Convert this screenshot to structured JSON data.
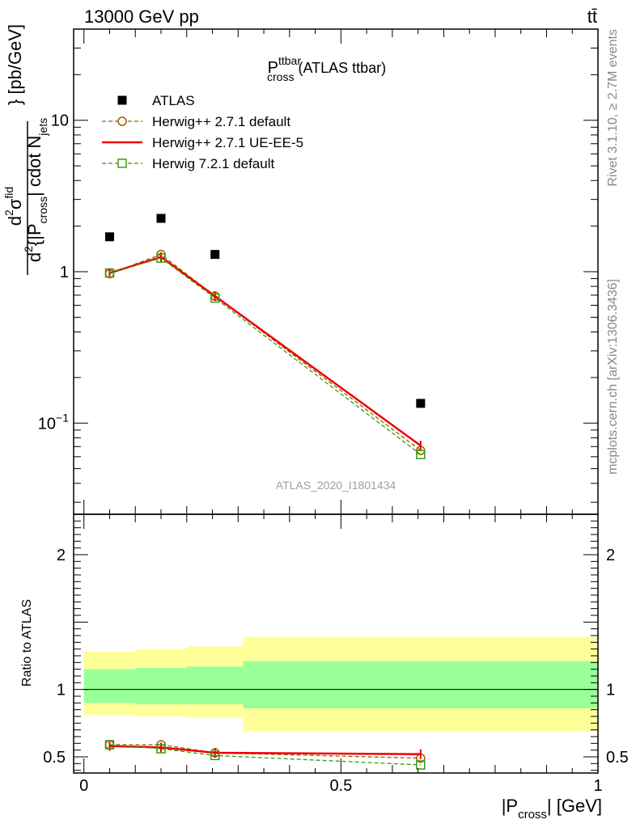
{
  "header": {
    "energy_label": "13000 GeV pp",
    "process_label": "tt̄"
  },
  "side_labels": {
    "rivet": "Rivet 3.1.10, ≥ 2.7M events",
    "mcplots": "mcplots.cern.ch [arXiv:1306.3436]"
  },
  "watermark": "ATLAS_2020_I1801434",
  "chart_data": [
    {
      "type": "scatter",
      "title": {
        "main": "P",
        "sup": "ttbar",
        "sub": "cross",
        "suffix": " (ATLAS ttbar)"
      },
      "ylabel": {
        "num_d": "d",
        "num_sup": "2",
        "num_sigma": "σ",
        "num_sigma_sup": "fid",
        "den_d": "d",
        "den_sup": "2",
        "den_body": "{|P",
        "den_sub": "cross",
        "den_body2": "| cdot N",
        "den_sub2": "jets",
        "units": "} [pb/GeV]"
      },
      "yscale": "log",
      "ylim": [
        0.025,
        40
      ],
      "xlim": [
        -0.02,
        1.0
      ],
      "yticks": [
        {
          "value": 0.1,
          "base": "10",
          "exp": "−1"
        },
        {
          "value": 1,
          "label": "1"
        },
        {
          "value": 10,
          "label": "10"
        }
      ],
      "series": [
        {
          "name": "ATLAS",
          "color": "#000000",
          "marker": "filled-square",
          "x": [
            0.05,
            0.15,
            0.255,
            0.655
          ],
          "y": [
            1.7,
            2.25,
            1.3,
            0.135
          ]
        },
        {
          "name": "Herwig++ 2.7.1 default",
          "color": "#a05a00",
          "marker": "open-circle",
          "dash": "dashed",
          "x": [
            0.05,
            0.15,
            0.255,
            0.655
          ],
          "y": [
            0.97,
            1.3,
            0.69,
            0.066
          ]
        },
        {
          "name": "Herwig++ 2.7.1 UE-EE-5",
          "color": "#ee0000",
          "marker": "none",
          "dash": "solid",
          "x": [
            0.05,
            0.15,
            0.255,
            0.655
          ],
          "y": [
            0.98,
            1.25,
            0.69,
            0.071
          ]
        },
        {
          "name": "Herwig 7.2.1 default",
          "color": "#3a9a10",
          "marker": "open-square",
          "dash": "dashed",
          "x": [
            0.05,
            0.15,
            0.255,
            0.655
          ],
          "y": [
            0.98,
            1.23,
            0.67,
            0.062
          ]
        }
      ]
    },
    {
      "type": "scatter",
      "ylabel": "Ratio to ATLAS",
      "xlabel": {
        "pre": "|P",
        "sub": "cross",
        "post": "| [GeV]"
      },
      "xlim": [
        -0.02,
        1.0
      ],
      "ylim": [
        0.38,
        2.3
      ],
      "xticks": [
        {
          "value": 0,
          "label": "0"
        },
        {
          "value": 0.5,
          "label": "0.5"
        },
        {
          "value": 1,
          "label": "1"
        }
      ],
      "yticks": [
        {
          "value": 0.5,
          "label": "0.5"
        },
        {
          "value": 1,
          "label": "1"
        },
        {
          "value": 2,
          "label": "2"
        }
      ],
      "reference_line": 1,
      "bands": [
        {
          "x0": 0.0,
          "x1": 0.1,
          "inner": [
            0.9,
            1.15
          ],
          "outer": [
            0.81,
            1.28
          ]
        },
        {
          "x0": 0.1,
          "x1": 0.2,
          "inner": [
            0.89,
            1.16
          ],
          "outer": [
            0.8,
            1.3
          ]
        },
        {
          "x0": 0.2,
          "x1": 0.31,
          "inner": [
            0.89,
            1.17
          ],
          "outer": [
            0.79,
            1.32
          ]
        },
        {
          "x0": 0.31,
          "x1": 1.0,
          "inner": [
            0.86,
            1.21
          ],
          "outer": [
            0.69,
            1.39
          ]
        }
      ],
      "band_colors": {
        "inner": "#99ff99",
        "outer": "#ffff99"
      },
      "series": [
        {
          "name": "Herwig++ 2.7.1 default",
          "color": "#a05a00",
          "marker": "open-circle",
          "dash": "dashed",
          "x": [
            0.05,
            0.15,
            0.255,
            0.655
          ],
          "y": [
            0.59,
            0.59,
            0.53,
            0.49
          ]
        },
        {
          "name": "Herwig++ 2.7.1 UE-EE-5",
          "color": "#ee0000",
          "marker": "none",
          "dash": "solid",
          "x": [
            0.05,
            0.15,
            0.255,
            0.655
          ],
          "y": [
            0.58,
            0.57,
            0.53,
            0.52
          ]
        },
        {
          "name": "Herwig 7.2.1 default",
          "color": "#3a9a10",
          "marker": "open-square",
          "dash": "dashed",
          "x": [
            0.05,
            0.15,
            0.255,
            0.655
          ],
          "y": [
            0.59,
            0.56,
            0.51,
            0.44
          ]
        }
      ]
    }
  ]
}
